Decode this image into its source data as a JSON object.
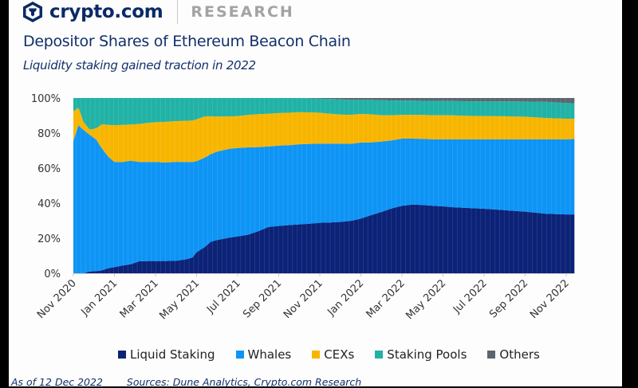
{
  "brand": {
    "name": "crypto.com",
    "section": "RESEARCH",
    "logo_icon": "lion-shield-icon"
  },
  "title": "Depositor Shares of Ethereum Beacon Chain",
  "subtitle": "Liquidity staking gained traction in 2022",
  "footer": {
    "as_of": "As of 12 Dec 2022",
    "sources": "Sources: Dune Analytics, Crypto.com Research"
  },
  "chart_data": {
    "type": "area",
    "stacked": true,
    "normalized": true,
    "title": "Depositor Shares of Ethereum Beacon Chain",
    "subtitle": "Liquidity staking gained traction in 2022",
    "xlabel": "",
    "ylabel": "",
    "ylim": [
      0,
      100
    ],
    "yticks": [
      "0%",
      "20%",
      "40%",
      "60%",
      "80%",
      "100%"
    ],
    "xticks": [
      "Nov 2020",
      "Jan 2021",
      "Mar 2021",
      "May 2021",
      "Jul 2021",
      "Sep 2021",
      "Nov 2021",
      "Jan 2022",
      "Mar 2022",
      "May 2022",
      "Jul 2022",
      "Sep 2022",
      "Nov 2022"
    ],
    "x_months": [
      0,
      0.25,
      0.5,
      0.8,
      1.1,
      1.4,
      1.7,
      2.0,
      2.4,
      2.8,
      3.2,
      3.6,
      4.0,
      4.5,
      5.0,
      5.5,
      5.8,
      6.0,
      6.4,
      6.7,
      7.0,
      7.6,
      8.0,
      8.5,
      9.0,
      9.5,
      10.0,
      10.5,
      11.0,
      11.5,
      12.0,
      12.5,
      13.0,
      13.5,
      14.0,
      14.5,
      15.0,
      15.5,
      16.0,
      16.5,
      17.0,
      17.5,
      18.0,
      18.5,
      19.0,
      20.0,
      21.0,
      22.0,
      23.0,
      24.0,
      24.4
    ],
    "x_start": "2020-11-01",
    "legend_position": "bottom",
    "grid": false,
    "series": [
      {
        "name": "Liquid Staking",
        "color": "#0b2277",
        "values": [
          0,
          0,
          0,
          1,
          1.2,
          1.7,
          2.9,
          3.5,
          4.4,
          5.2,
          6.8,
          7.0,
          7.0,
          7.0,
          7.1,
          8.0,
          9.0,
          12.0,
          15.0,
          18.0,
          19.0,
          20.3,
          21.0,
          22.0,
          24.0,
          26.4,
          27.0,
          27.5,
          27.9,
          28.3,
          28.8,
          29.0,
          29.3,
          29.9,
          31.2,
          33.2,
          35.0,
          37.0,
          38.5,
          39.2,
          39.0,
          38.5,
          38.2,
          37.7,
          37.4,
          36.8,
          36.0,
          35.2,
          34.0,
          33.6,
          33.6
        ]
      },
      {
        "name": "Whales",
        "color": "#0d94f5",
        "values": [
          75.6,
          84.4,
          81.7,
          78.0,
          75.2,
          69.3,
          63.6,
          60.0,
          59.1,
          59.0,
          56.7,
          56.5,
          56.5,
          56.2,
          56.5,
          55.5,
          54.5,
          52.0,
          51.0,
          50.0,
          50.4,
          50.7,
          50.5,
          49.8,
          48.0,
          45.9,
          45.8,
          45.6,
          45.7,
          45.5,
          45.1,
          45.0,
          44.7,
          43.9,
          43.4,
          41.5,
          40.2,
          38.8,
          38.3,
          37.6,
          37.7,
          37.9,
          38.2,
          38.7,
          39.0,
          39.6,
          40.4,
          41.2,
          42.4,
          42.8,
          43.0
        ]
      },
      {
        "name": "CEXs",
        "color": "#f7b500",
        "values": [
          16.7,
          10.1,
          4.5,
          3.0,
          6.3,
          14.0,
          18.2,
          21.0,
          21.2,
          20.7,
          21.7,
          22.3,
          22.7,
          23.2,
          23.2,
          23.5,
          23.7,
          23.8,
          23.5,
          21.6,
          20.0,
          18.5,
          18.2,
          18.5,
          18.8,
          18.7,
          18.6,
          18.5,
          18.3,
          18.0,
          17.7,
          17.0,
          16.6,
          16.6,
          16.3,
          16.0,
          15.0,
          14.4,
          13.6,
          13.6,
          13.6,
          13.8,
          13.8,
          13.7,
          13.5,
          13.3,
          13.2,
          12.9,
          12.2,
          11.8,
          11.6
        ]
      },
      {
        "name": "Staking Pools",
        "color": "#21b2a6",
        "values": [
          7.7,
          5.5,
          13.8,
          18.0,
          17.3,
          15.0,
          15.3,
          15.5,
          15.3,
          15.1,
          14.8,
          14.2,
          13.8,
          13.6,
          13.2,
          13.0,
          12.8,
          12.2,
          10.5,
          10.4,
          10.6,
          10.5,
          10.3,
          9.7,
          9.2,
          9.0,
          8.6,
          8.4,
          8.1,
          8.0,
          8.0,
          8.5,
          8.6,
          8.5,
          8.0,
          8.2,
          8.6,
          8.4,
          8.2,
          8.1,
          8.1,
          8.2,
          8.1,
          8.2,
          8.3,
          8.4,
          8.5,
          8.7,
          9.2,
          9.0,
          8.8
        ]
      },
      {
        "name": "Others",
        "color": "#5b6670",
        "values": [
          0,
          0,
          0,
          0,
          0,
          0,
          0,
          0,
          0,
          0,
          0,
          0,
          0,
          0,
          0,
          0,
          0,
          0,
          0,
          0,
          0,
          0,
          0,
          0,
          0,
          0,
          0,
          0,
          0,
          0.2,
          0.4,
          0.5,
          0.8,
          1.1,
          1.1,
          1.1,
          1.2,
          1.4,
          1.4,
          1.5,
          1.6,
          1.6,
          1.7,
          1.7,
          1.8,
          1.9,
          1.9,
          2.0,
          2.2,
          2.8,
          3.0
        ]
      }
    ]
  }
}
